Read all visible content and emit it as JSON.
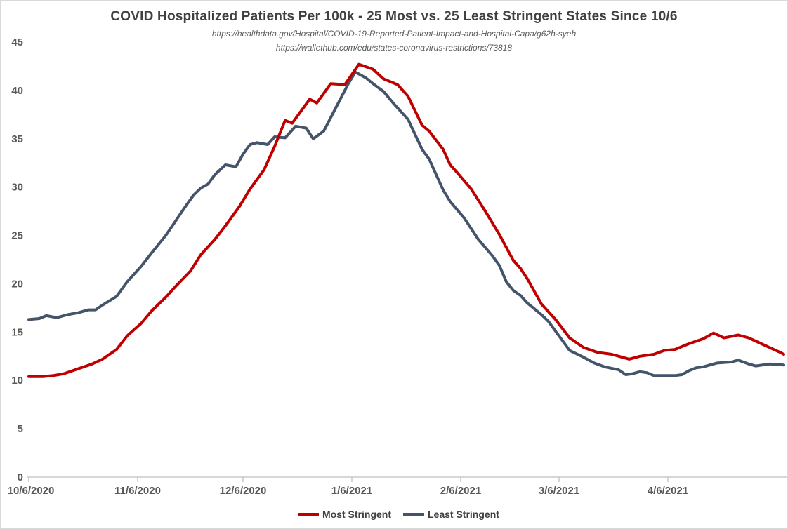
{
  "header": {
    "title": "COVID Hospitalized Patients Per 100k - 25 Most vs. 25 Least Stringent States Since 10/6",
    "source_line1": "https://healthdata.gov/Hospital/COVID-19-Reported-Patient-Impact-and-Hospital-Capa/g62h-syeh",
    "source_line2": "https://wallethub.com/edu/states-coronavirus-restrictions/73818"
  },
  "colors": {
    "most_stringent": "#C00000",
    "least_stringent": "#44546A",
    "title_text": "#404040",
    "axis_text": "#595959",
    "axis_line": "#BFBFBF",
    "chart_border": "#D9D9D9",
    "background": "#FFFFFF"
  },
  "chart_data": {
    "type": "line",
    "title": "COVID Hospitalized Patients Per 100k - 25 Most vs. 25 Least Stringent States Since 10/6",
    "xlabel": "",
    "ylabel": "",
    "grid": false,
    "legend_position": "bottom",
    "x_domain": [
      "10/6/2020",
      "5/9/2021"
    ],
    "x_ticks": [
      "10/6/2020",
      "11/6/2020",
      "12/6/2020",
      "1/6/2021",
      "2/6/2021",
      "3/6/2021",
      "4/6/2021"
    ],
    "y_axis": {
      "min": 0,
      "max": 45,
      "tick_step": 5,
      "ticks": [
        0,
        5,
        10,
        15,
        20,
        25,
        30,
        35,
        40,
        45
      ]
    },
    "series": [
      {
        "name": "Most Stringent",
        "color": "#C00000",
        "points": [
          [
            "10/6/2020",
            10.4
          ],
          [
            "10/10/2020",
            10.4
          ],
          [
            "10/13/2020",
            10.5
          ],
          [
            "10/16/2020",
            10.7
          ],
          [
            "10/20/2020",
            11.2
          ],
          [
            "10/24/2020",
            11.7
          ],
          [
            "10/27/2020",
            12.2
          ],
          [
            "10/31/2020",
            13.2
          ],
          [
            "11/3/2020",
            14.6
          ],
          [
            "11/7/2020",
            15.9
          ],
          [
            "11/10/2020",
            17.2
          ],
          [
            "11/14/2020",
            18.6
          ],
          [
            "11/17/2020",
            19.8
          ],
          [
            "11/21/2020",
            21.3
          ],
          [
            "11/24/2020",
            23.0
          ],
          [
            "11/28/2020",
            24.6
          ],
          [
            "12/1/2020",
            26.0
          ],
          [
            "12/5/2020",
            28.0
          ],
          [
            "12/8/2020",
            29.8
          ],
          [
            "12/12/2020",
            31.8
          ],
          [
            "12/15/2020",
            34.2
          ],
          [
            "12/18/2020",
            36.9
          ],
          [
            "12/20/2020",
            36.6
          ],
          [
            "12/25/2020",
            39.1
          ],
          [
            "12/27/2020",
            38.7
          ],
          [
            "12/31/2020",
            40.7
          ],
          [
            "1/4/2021",
            40.6
          ],
          [
            "1/8/2021",
            42.7
          ],
          [
            "1/12/2021",
            42.2
          ],
          [
            "1/15/2021",
            41.2
          ],
          [
            "1/19/2021",
            40.6
          ],
          [
            "1/22/2021",
            39.4
          ],
          [
            "1/26/2021",
            36.4
          ],
          [
            "1/28/2021",
            35.8
          ],
          [
            "2/1/2021",
            33.9
          ],
          [
            "2/3/2021",
            32.3
          ],
          [
            "2/5/2021",
            31.5
          ],
          [
            "2/9/2021",
            29.8
          ],
          [
            "2/13/2021",
            27.5
          ],
          [
            "2/17/2021",
            25.1
          ],
          [
            "2/21/2021",
            22.4
          ],
          [
            "2/23/2021",
            21.6
          ],
          [
            "2/25/2021",
            20.5
          ],
          [
            "3/1/2021",
            17.9
          ],
          [
            "3/5/2021",
            16.3
          ],
          [
            "3/9/2021",
            14.4
          ],
          [
            "3/13/2021",
            13.4
          ],
          [
            "3/17/2021",
            12.9
          ],
          [
            "3/21/2021",
            12.7
          ],
          [
            "3/26/2021",
            12.2
          ],
          [
            "3/29/2021",
            12.5
          ],
          [
            "4/2/2021",
            12.7
          ],
          [
            "4/5/2021",
            13.1
          ],
          [
            "4/8/2021",
            13.2
          ],
          [
            "4/12/2021",
            13.8
          ],
          [
            "4/16/2021",
            14.3
          ],
          [
            "4/19/2021",
            14.9
          ],
          [
            "4/22/2021",
            14.4
          ],
          [
            "4/26/2021",
            14.7
          ],
          [
            "4/29/2021",
            14.4
          ],
          [
            "5/2/2021",
            13.9
          ],
          [
            "5/5/2021",
            13.4
          ],
          [
            "5/8/2021",
            12.9
          ],
          [
            "5/9/2021",
            12.7
          ]
        ]
      },
      {
        "name": "Least Stringent",
        "color": "#44546A",
        "points": [
          [
            "10/6/2020",
            16.3
          ],
          [
            "10/9/2020",
            16.4
          ],
          [
            "10/11/2020",
            16.7
          ],
          [
            "10/14/2020",
            16.5
          ],
          [
            "10/17/2020",
            16.8
          ],
          [
            "10/20/2020",
            17.0
          ],
          [
            "10/23/2020",
            17.3
          ],
          [
            "10/25/2020",
            17.3
          ],
          [
            "10/27/2020",
            17.8
          ],
          [
            "10/31/2020",
            18.7
          ],
          [
            "11/3/2020",
            20.2
          ],
          [
            "11/7/2020",
            21.8
          ],
          [
            "11/10/2020",
            23.2
          ],
          [
            "11/14/2020",
            25.0
          ],
          [
            "11/17/2020",
            26.6
          ],
          [
            "11/20/2020",
            28.2
          ],
          [
            "11/22/2020",
            29.2
          ],
          [
            "11/24/2020",
            29.9
          ],
          [
            "11/26/2020",
            30.3
          ],
          [
            "11/28/2020",
            31.3
          ],
          [
            "12/1/2020",
            32.3
          ],
          [
            "12/4/2020",
            32.1
          ],
          [
            "12/6/2020",
            33.4
          ],
          [
            "12/8/2020",
            34.4
          ],
          [
            "12/10/2020",
            34.6
          ],
          [
            "12/13/2020",
            34.4
          ],
          [
            "12/15/2020",
            35.2
          ],
          [
            "12/18/2020",
            35.1
          ],
          [
            "12/21/2020",
            36.3
          ],
          [
            "12/24/2020",
            36.1
          ],
          [
            "12/26/2020",
            35.0
          ],
          [
            "12/29/2020",
            35.8
          ],
          [
            "1/2/2021",
            38.6
          ],
          [
            "1/5/2021",
            40.7
          ],
          [
            "1/7/2021",
            41.9
          ],
          [
            "1/10/2021",
            41.3
          ],
          [
            "1/12/2021",
            40.7
          ],
          [
            "1/15/2021",
            39.9
          ],
          [
            "1/18/2021",
            38.6
          ],
          [
            "1/22/2021",
            37.0
          ],
          [
            "1/26/2021",
            33.9
          ],
          [
            "1/28/2021",
            32.9
          ],
          [
            "2/1/2021",
            29.7
          ],
          [
            "2/3/2021",
            28.5
          ],
          [
            "2/7/2021",
            26.8
          ],
          [
            "2/11/2021",
            24.6
          ],
          [
            "2/15/2021",
            22.9
          ],
          [
            "2/17/2021",
            21.9
          ],
          [
            "2/19/2021",
            20.2
          ],
          [
            "2/21/2021",
            19.3
          ],
          [
            "2/23/2021",
            18.8
          ],
          [
            "2/25/2021",
            18.0
          ],
          [
            "3/1/2021",
            16.8
          ],
          [
            "3/3/2021",
            16.1
          ],
          [
            "3/5/2021",
            15.1
          ],
          [
            "3/7/2021",
            14.1
          ],
          [
            "3/9/2021",
            13.1
          ],
          [
            "3/13/2021",
            12.4
          ],
          [
            "3/16/2021",
            11.8
          ],
          [
            "3/19/2021",
            11.4
          ],
          [
            "3/23/2021",
            11.1
          ],
          [
            "3/25/2021",
            10.6
          ],
          [
            "3/27/2021",
            10.7
          ],
          [
            "3/29/2021",
            10.9
          ],
          [
            "3/31/2021",
            10.8
          ],
          [
            "4/2/2021",
            10.5
          ],
          [
            "4/5/2021",
            10.5
          ],
          [
            "4/8/2021",
            10.5
          ],
          [
            "4/10/2021",
            10.6
          ],
          [
            "4/12/2021",
            11.0
          ],
          [
            "4/14/2021",
            11.3
          ],
          [
            "4/16/2021",
            11.4
          ],
          [
            "4/20/2021",
            11.8
          ],
          [
            "4/24/2021",
            11.9
          ],
          [
            "4/26/2021",
            12.1
          ],
          [
            "4/29/2021",
            11.7
          ],
          [
            "5/1/2021",
            11.5
          ],
          [
            "5/3/2021",
            11.6
          ],
          [
            "5/5/2021",
            11.7
          ],
          [
            "5/9/2021",
            11.6
          ]
        ]
      }
    ]
  },
  "legend": {
    "items": [
      {
        "label": "Most Stringent",
        "color": "#C00000"
      },
      {
        "label": "Least Stringent",
        "color": "#44546A"
      }
    ]
  }
}
